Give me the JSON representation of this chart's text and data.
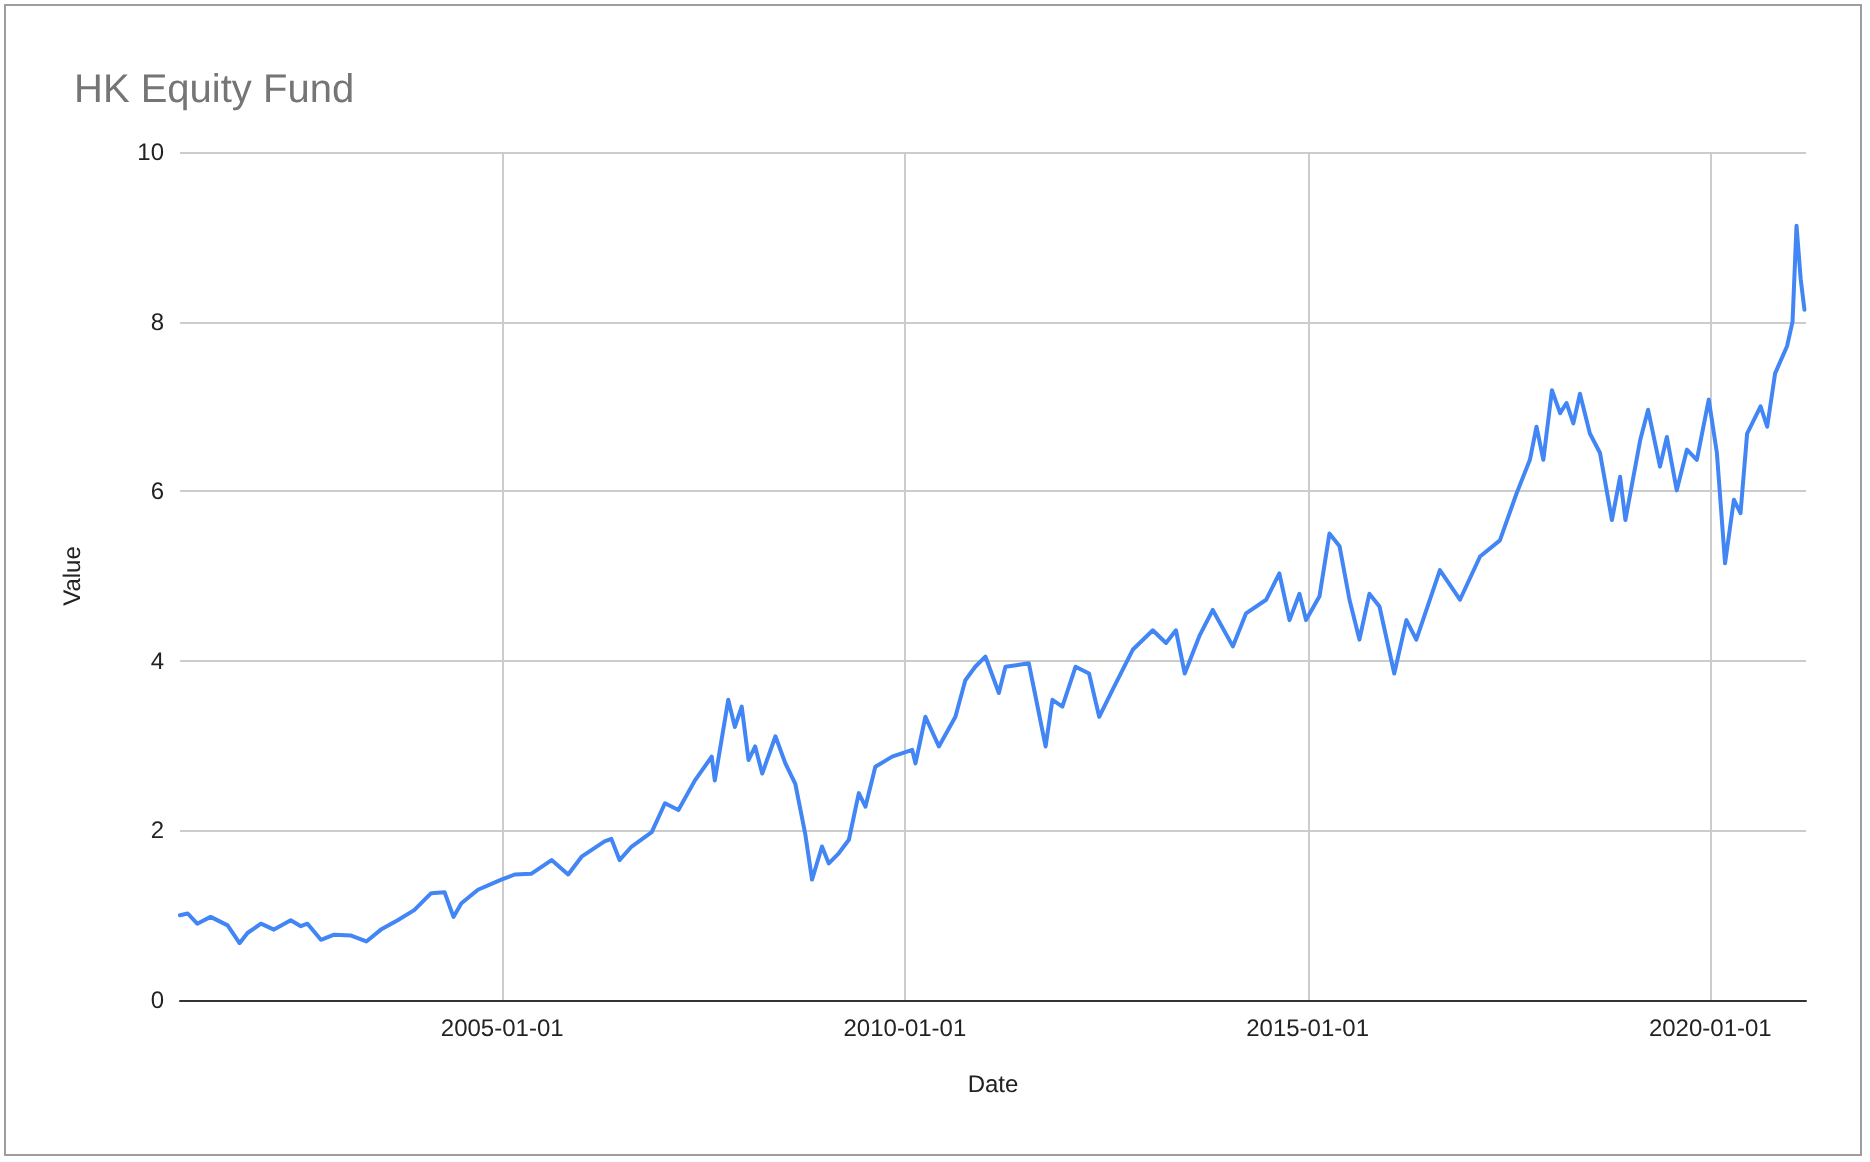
{
  "chart_data": {
    "type": "line",
    "title": "HK Equity Fund",
    "xlabel": "Date",
    "ylabel": "Value",
    "x": [
      "2001-01-01",
      "2001-02-05",
      "2001-03-20",
      "2001-05-20",
      "2001-08-05",
      "2001-09-28",
      "2001-11-03",
      "2002-01-03",
      "2002-03-03",
      "2002-05-18",
      "2002-07-03",
      "2002-08-02",
      "2002-10-02",
      "2002-12-01",
      "2003-02-16",
      "2003-04-26",
      "2003-07-01",
      "2003-09-15",
      "2003-11-29",
      "2004-02-14",
      "2004-04-15",
      "2004-05-25",
      "2004-06-30",
      "2004-09-13",
      "2004-12-28",
      "2005-02-27",
      "2005-05-14",
      "2005-08-13",
      "2005-10-27",
      "2005-12-27",
      "2006-04-10",
      "2006-05-11",
      "2006-06-17",
      "2006-08-11",
      "2006-11-10",
      "2007-01-09",
      "2007-03-11",
      "2007-05-25",
      "2007-08-09",
      "2007-08-23",
      "2007-10-23",
      "2007-11-22",
      "2007-12-23",
      "2008-01-23",
      "2008-02-22",
      "2008-03-25",
      "2008-05-24",
      "2008-07-08",
      "2008-08-22",
      "2008-10-06",
      "2008-11-06",
      "2008-12-21",
      "2009-01-21",
      "2009-03-07",
      "2009-04-22",
      "2009-06-06",
      "2009-07-06",
      "2009-08-20",
      "2009-11-04",
      "2010-02-03",
      "2010-02-18",
      "2010-04-04",
      "2010-06-04",
      "2010-08-18",
      "2010-10-02",
      "2010-11-16",
      "2011-01-01",
      "2011-03-03",
      "2011-04-02",
      "2011-07-17",
      "2011-08-07",
      "2011-10-01",
      "2011-11-01",
      "2011-12-16",
      "2012-02-14",
      "2012-04-15",
      "2012-05-31",
      "2012-07-31",
      "2012-10-30",
      "2013-01-29",
      "2013-03-30",
      "2013-05-14",
      "2013-06-23",
      "2013-08-28",
      "2013-10-28",
      "2014-01-27",
      "2014-03-28",
      "2014-06-27",
      "2014-08-26",
      "2014-10-11",
      "2014-11-25",
      "2014-12-25",
      "2015-02-24",
      "2015-04-10",
      "2015-05-26",
      "2015-07-10",
      "2015-08-24",
      "2015-10-08",
      "2015-11-23",
      "2016-01-29",
      "2016-03-24",
      "2016-05-08",
      "2016-08-23",
      "2016-11-22",
      "2017-02-21",
      "2017-05-22",
      "2017-08-05",
      "2017-10-05",
      "2017-11-04",
      "2017-12-05",
      "2018-01-13",
      "2018-02-19",
      "2018-03-20",
      "2018-04-20",
      "2018-05-20",
      "2018-07-04",
      "2018-08-19",
      "2018-10-12",
      "2018-11-18",
      "2018-12-12",
      "2019-02-17",
      "2019-03-25",
      "2019-05-18",
      "2019-06-18",
      "2019-08-02",
      "2019-09-17",
      "2019-11-01",
      "2019-12-25",
      "2020-01-31",
      "2020-03-08",
      "2020-04-17",
      "2020-05-17",
      "2020-06-16",
      "2020-08-16",
      "2020-09-15",
      "2020-10-21",
      "2020-12-14",
      "2021-01-08",
      "2021-01-26",
      "2021-02-14",
      "2021-03-03"
    ],
    "series": [
      {
        "color": "#4285f4",
        "values": [
          1.0,
          1.02,
          0.9,
          0.98,
          0.88,
          0.67,
          0.79,
          0.9,
          0.83,
          0.94,
          0.87,
          0.9,
          0.71,
          0.77,
          0.76,
          0.69,
          0.83,
          0.94,
          1.06,
          1.26,
          1.27,
          0.98,
          1.14,
          1.3,
          1.42,
          1.48,
          1.49,
          1.65,
          1.48,
          1.69,
          1.87,
          1.9,
          1.65,
          1.81,
          1.98,
          2.32,
          2.24,
          2.59,
          2.87,
          2.59,
          3.54,
          3.22,
          3.46,
          2.83,
          2.99,
          2.67,
          3.11,
          2.79,
          2.55,
          1.96,
          1.42,
          1.81,
          1.61,
          1.73,
          1.89,
          2.44,
          2.28,
          2.75,
          2.87,
          2.95,
          2.79,
          3.34,
          2.99,
          3.34,
          3.77,
          3.93,
          4.05,
          3.62,
          3.93,
          3.97,
          3.7,
          2.99,
          3.54,
          3.46,
          3.93,
          3.85,
          3.34,
          3.66,
          4.13,
          4.36,
          4.21,
          4.36,
          3.85,
          4.29,
          4.6,
          4.17,
          4.56,
          4.72,
          5.03,
          4.48,
          4.79,
          4.48,
          4.76,
          5.5,
          5.35,
          4.72,
          4.25,
          4.79,
          4.64,
          3.85,
          4.48,
          4.25,
          5.07,
          4.72,
          5.23,
          5.42,
          5.97,
          6.37,
          6.76,
          6.37,
          7.19,
          6.92,
          7.04,
          6.8,
          7.15,
          6.68,
          6.45,
          5.66,
          6.17,
          5.66,
          6.6,
          6.96,
          6.29,
          6.64,
          6.01,
          6.49,
          6.37,
          7.08,
          6.45,
          5.15,
          5.9,
          5.74,
          6.68,
          7.0,
          6.76,
          7.39,
          7.71,
          8.0,
          9.13,
          8.5,
          8.14
        ]
      }
    ],
    "xlim": [
      "2001-01-01",
      "2021-03-10"
    ],
    "ylim": [
      0,
      10
    ],
    "xticks": [
      "2005-01-01",
      "2010-01-01",
      "2015-01-01",
      "2020-01-01"
    ],
    "yticks": [
      0,
      2,
      4,
      6,
      8,
      10
    ],
    "grid": true
  }
}
